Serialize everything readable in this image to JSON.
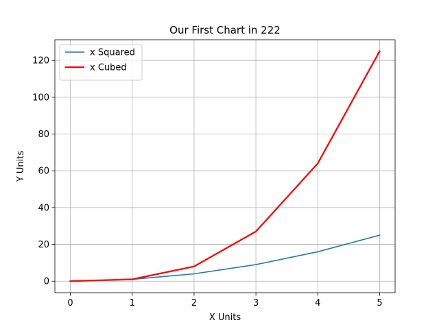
{
  "chart_data": {
    "type": "line",
    "title": "Our First Chart in 222",
    "xlabel": "X Units",
    "ylabel": "Y Units",
    "x": [
      0,
      1,
      2,
      3,
      4,
      5
    ],
    "x_ticks": [
      "0",
      "1",
      "2",
      "3",
      "4",
      "5"
    ],
    "y_ticks": [
      0,
      20,
      40,
      60,
      80,
      100,
      120
    ],
    "xlim": [
      -0.25,
      5.25
    ],
    "ylim": [
      -6.25,
      131.25
    ],
    "grid": true,
    "legend_position": "top-left",
    "series": [
      {
        "name": "x Squared",
        "values": [
          0,
          1,
          4,
          9,
          16,
          25
        ],
        "color": "#1f77b4"
      },
      {
        "name": "x Cubed",
        "values": [
          0,
          1,
          8,
          27,
          64,
          125
        ],
        "color": "#ff0000"
      }
    ]
  }
}
